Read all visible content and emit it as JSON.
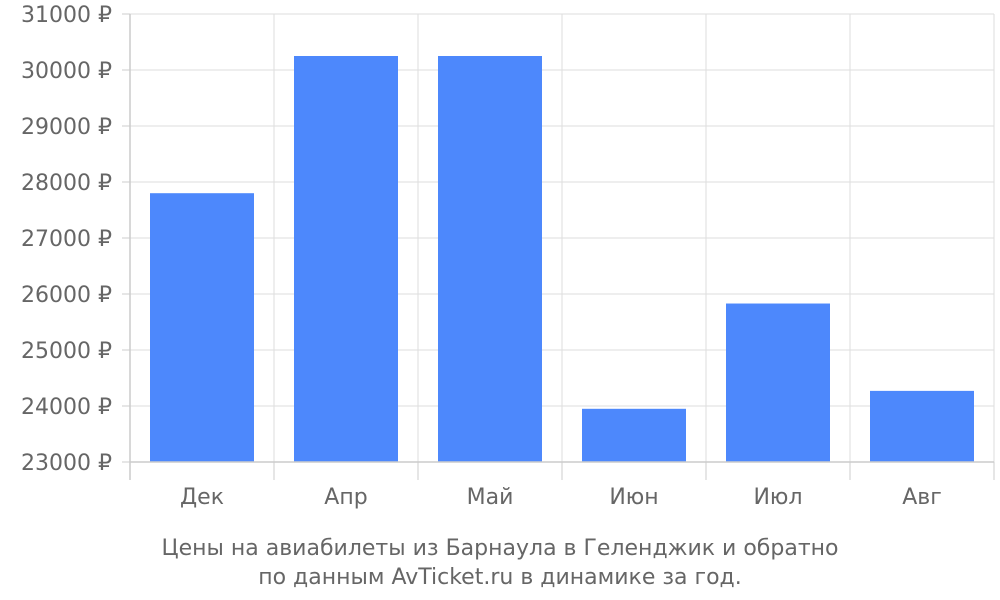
{
  "chart_data": {
    "type": "bar",
    "categories": [
      "Дек",
      "Апр",
      "Май",
      "Июн",
      "Июл",
      "Авг"
    ],
    "values": [
      27800,
      30250,
      30250,
      23950,
      25830,
      24270
    ],
    "yticks": [
      23000,
      24000,
      25000,
      26000,
      27000,
      28000,
      29000,
      30000,
      31000
    ],
    "ytick_labels": [
      "23000 ₽",
      "24000 ₽",
      "25000 ₽",
      "26000 ₽",
      "27000 ₽",
      "28000 ₽",
      "29000 ₽",
      "30000 ₽",
      "31000 ₽"
    ],
    "ylim": [
      23000,
      31000
    ],
    "grid": true,
    "bar_color": "#4d88fc",
    "caption": [
      "Цены на авиабилеты из Барнаула в Геленджик и обратно",
      "по данным AvTicket.ru в динамике за год."
    ]
  }
}
